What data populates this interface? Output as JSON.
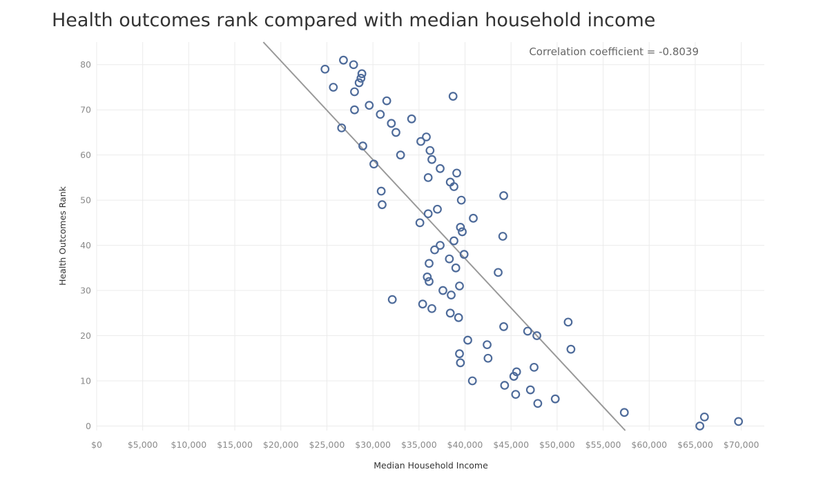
{
  "chart_data": {
    "type": "scatter",
    "title": "Health outcomes rank compared with median household income",
    "xlabel": "Median Household Income",
    "ylabel": "Health Outcomes Rank",
    "xlim": [
      0,
      72500
    ],
    "ylim": [
      -1,
      85
    ],
    "x_ticks": [
      {
        "value": 0,
        "label": "$0"
      },
      {
        "value": 5000,
        "label": "$5,000"
      },
      {
        "value": 10000,
        "label": "$10,000"
      },
      {
        "value": 15000,
        "label": "$15,000"
      },
      {
        "value": 20000,
        "label": "$20,000"
      },
      {
        "value": 25000,
        "label": "$25,000"
      },
      {
        "value": 30000,
        "label": "$30,000"
      },
      {
        "value": 35000,
        "label": "$35,000"
      },
      {
        "value": 40000,
        "label": "$40,000"
      },
      {
        "value": 45000,
        "label": "$45,000"
      },
      {
        "value": 50000,
        "label": "$50,000"
      },
      {
        "value": 55000,
        "label": "$55,000"
      },
      {
        "value": 60000,
        "label": "$60,000"
      },
      {
        "value": 65000,
        "label": "$65,000"
      },
      {
        "value": 70000,
        "label": "$70,000"
      }
    ],
    "y_ticks": [
      {
        "value": 0,
        "label": "0"
      },
      {
        "value": 10,
        "label": "10"
      },
      {
        "value": 20,
        "label": "20"
      },
      {
        "value": 30,
        "label": "30"
      },
      {
        "value": 40,
        "label": "40"
      },
      {
        "value": 50,
        "label": "50"
      },
      {
        "value": 60,
        "label": "60"
      },
      {
        "value": 70,
        "label": "70"
      },
      {
        "value": 80,
        "label": "80"
      }
    ],
    "grid": true,
    "annotation": "Correlation coefficient = -0.8039",
    "trend_line": {
      "x": [
        18100,
        57400
      ],
      "y": [
        85,
        -1
      ]
    },
    "colors": {
      "marker": "#4e6b9a",
      "trend": "#999999",
      "grid": "#ebebeb"
    },
    "points": [
      {
        "x": 24800,
        "y": 79
      },
      {
        "x": 26800,
        "y": 81
      },
      {
        "x": 27900,
        "y": 80
      },
      {
        "x": 28800,
        "y": 78
      },
      {
        "x": 28700,
        "y": 77
      },
      {
        "x": 28500,
        "y": 76
      },
      {
        "x": 25700,
        "y": 75
      },
      {
        "x": 28000,
        "y": 74
      },
      {
        "x": 38700,
        "y": 73
      },
      {
        "x": 31500,
        "y": 72
      },
      {
        "x": 29600,
        "y": 71
      },
      {
        "x": 28000,
        "y": 70
      },
      {
        "x": 30800,
        "y": 69
      },
      {
        "x": 34200,
        "y": 68
      },
      {
        "x": 32000,
        "y": 67
      },
      {
        "x": 26600,
        "y": 66
      },
      {
        "x": 32500,
        "y": 65
      },
      {
        "x": 35800,
        "y": 64
      },
      {
        "x": 35200,
        "y": 63
      },
      {
        "x": 28900,
        "y": 62
      },
      {
        "x": 36200,
        "y": 61
      },
      {
        "x": 33000,
        "y": 60
      },
      {
        "x": 36400,
        "y": 59
      },
      {
        "x": 30100,
        "y": 58
      },
      {
        "x": 37300,
        "y": 57
      },
      {
        "x": 39100,
        "y": 56
      },
      {
        "x": 36000,
        "y": 55
      },
      {
        "x": 38400,
        "y": 54
      },
      {
        "x": 38800,
        "y": 53
      },
      {
        "x": 30900,
        "y": 52
      },
      {
        "x": 44200,
        "y": 51
      },
      {
        "x": 39600,
        "y": 50
      },
      {
        "x": 31000,
        "y": 49
      },
      {
        "x": 37000,
        "y": 48
      },
      {
        "x": 36000,
        "y": 47
      },
      {
        "x": 40900,
        "y": 46
      },
      {
        "x": 35100,
        "y": 45
      },
      {
        "x": 39500,
        "y": 44
      },
      {
        "x": 39700,
        "y": 43
      },
      {
        "x": 44100,
        "y": 42
      },
      {
        "x": 38800,
        "y": 41
      },
      {
        "x": 37300,
        "y": 40
      },
      {
        "x": 36700,
        "y": 39
      },
      {
        "x": 39900,
        "y": 38
      },
      {
        "x": 38300,
        "y": 37
      },
      {
        "x": 36100,
        "y": 36
      },
      {
        "x": 39000,
        "y": 35
      },
      {
        "x": 43600,
        "y": 34
      },
      {
        "x": 35900,
        "y": 33
      },
      {
        "x": 36100,
        "y": 32
      },
      {
        "x": 39400,
        "y": 31
      },
      {
        "x": 37600,
        "y": 30
      },
      {
        "x": 38500,
        "y": 29
      },
      {
        "x": 32100,
        "y": 28
      },
      {
        "x": 35400,
        "y": 27
      },
      {
        "x": 36400,
        "y": 26
      },
      {
        "x": 38400,
        "y": 25
      },
      {
        "x": 39300,
        "y": 24
      },
      {
        "x": 51200,
        "y": 23
      },
      {
        "x": 44200,
        "y": 22
      },
      {
        "x": 46800,
        "y": 21
      },
      {
        "x": 47800,
        "y": 20
      },
      {
        "x": 40300,
        "y": 19
      },
      {
        "x": 42400,
        "y": 18
      },
      {
        "x": 51500,
        "y": 17
      },
      {
        "x": 39400,
        "y": 16
      },
      {
        "x": 42500,
        "y": 15
      },
      {
        "x": 39500,
        "y": 14
      },
      {
        "x": 47500,
        "y": 13
      },
      {
        "x": 45600,
        "y": 12
      },
      {
        "x": 45300,
        "y": 11
      },
      {
        "x": 40800,
        "y": 10
      },
      {
        "x": 44300,
        "y": 9
      },
      {
        "x": 47100,
        "y": 8
      },
      {
        "x": 45500,
        "y": 7
      },
      {
        "x": 49800,
        "y": 6
      },
      {
        "x": 47900,
        "y": 5
      },
      {
        "x": 57300,
        "y": 3
      },
      {
        "x": 66000,
        "y": 2
      },
      {
        "x": 69700,
        "y": 1
      },
      {
        "x": 65500,
        "y": 0
      }
    ]
  }
}
